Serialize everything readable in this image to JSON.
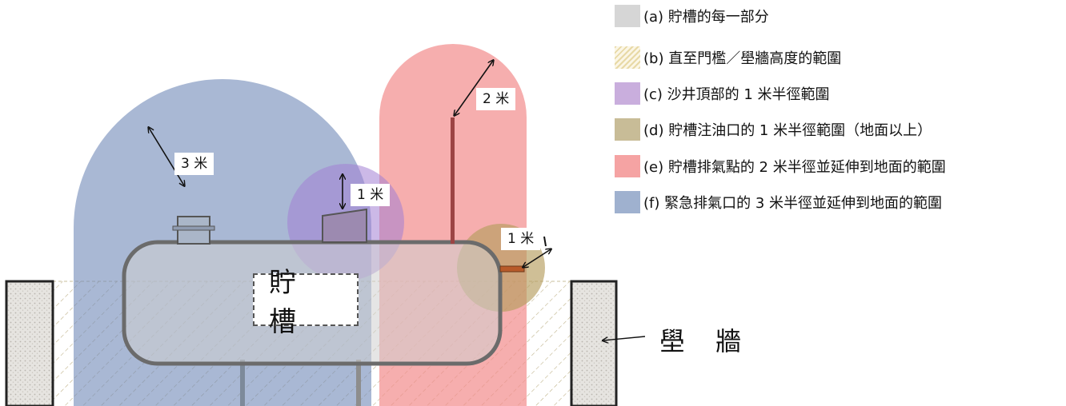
{
  "labels": {
    "tank": "貯 槽",
    "wall": "壆 牆",
    "dim_3m": "3 米",
    "dim_1m_sand": "1 米",
    "dim_2m": "2 米",
    "dim_1m_fill": "1 米"
  },
  "legend": [
    {
      "key": "a",
      "text": "(a)  貯槽的每一部分",
      "color": "#d6d6d6",
      "icon": "solid-swatch"
    },
    {
      "key": "b",
      "text": "(b)  直至門檻／壆牆高度的範圍",
      "color": "#e8d9a6",
      "icon": "hatched-swatch"
    },
    {
      "key": "c",
      "text": "(c)  沙井頂部的 1 米半徑範圍",
      "color": "#c9aedd",
      "icon": "solid-swatch"
    },
    {
      "key": "d",
      "text": "(d)  貯槽注油口的 1 米半徑範圍（地面以上）",
      "color": "#c8bc97",
      "icon": "solid-swatch"
    },
    {
      "key": "e",
      "text": "(e)  貯槽排氣點的 2 米半徑並延伸到地面的範圍",
      "color": "#f5a3a3",
      "icon": "solid-swatch"
    },
    {
      "key": "f",
      "text": "(f)  緊急排氣口的 3 米半徑並延伸到地面的範圍",
      "color": "#9fb1cf",
      "icon": "solid-swatch"
    }
  ],
  "colors": {
    "tank_body": "#cfcfcf",
    "tank_outline": "#666666",
    "sand_circle": "#a58ad0",
    "fill_circle": "#b8a06a",
    "vent_zone": "#f28c8c",
    "emergency_zone": "#6f88b7",
    "wall_fill": "#e4e2de",
    "hatch": "#c8b98a"
  }
}
